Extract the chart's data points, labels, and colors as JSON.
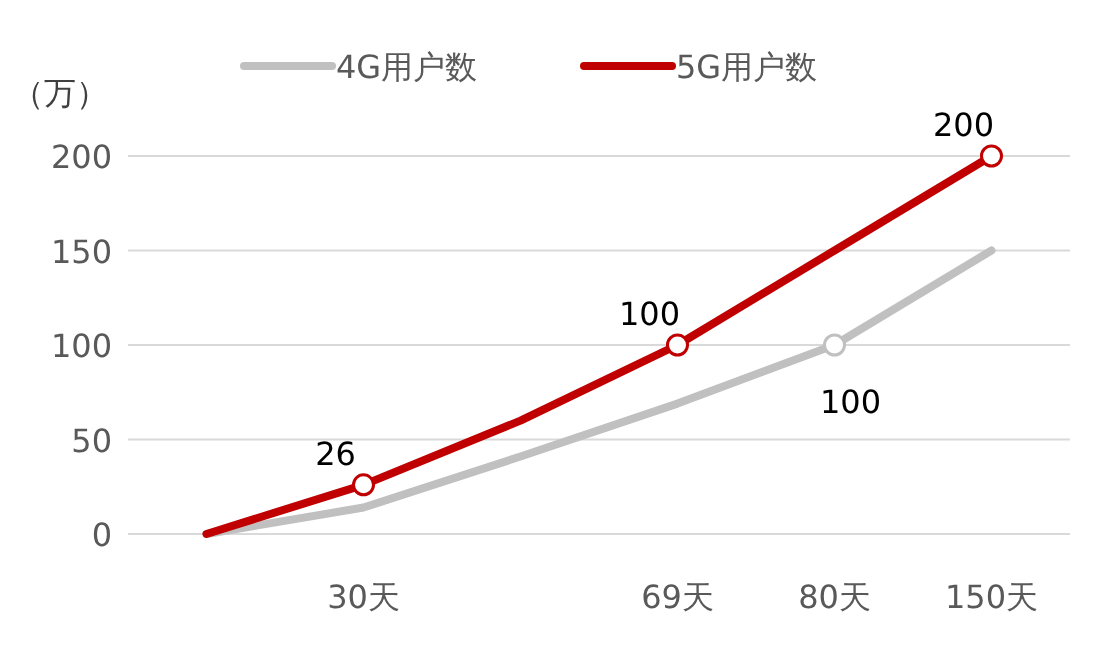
{
  "chart_data": {
    "type": "line",
    "ylabel": "（万）",
    "categories": [
      null,
      "30天",
      null,
      "69天",
      "80天",
      "150天"
    ],
    "series": [
      {
        "name": "4G用户数",
        "color": "#c0c0c0",
        "values": [
          0,
          14,
          41,
          69,
          100,
          150
        ],
        "value_labels": [
          null,
          null,
          null,
          null,
          "100",
          null
        ]
      },
      {
        "name": "5G用户数",
        "color": "#c00000",
        "values": [
          0,
          26,
          60,
          100,
          150,
          200
        ],
        "value_labels": [
          null,
          "26",
          null,
          "100",
          null,
          "200"
        ]
      }
    ],
    "ylim": [
      0,
      200
    ],
    "yticks": [
      0,
      50,
      100,
      150,
      200
    ],
    "grid": "y",
    "legend": "top"
  }
}
